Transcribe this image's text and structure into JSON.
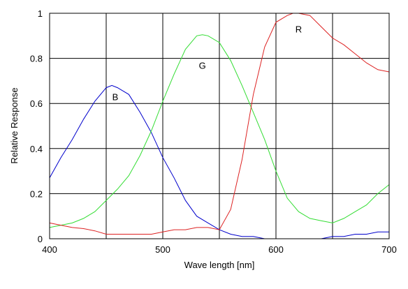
{
  "chart_data": {
    "type": "line",
    "xlabel": "Wave length [nm]",
    "ylabel": "Relative Response",
    "xlim": [
      400,
      700
    ],
    "ylim": [
      0,
      1
    ],
    "xticks": [
      400,
      500,
      600,
      700
    ],
    "yticks": [
      0,
      0.2,
      0.4,
      0.6,
      0.8,
      1
    ],
    "ytick_labels": [
      "0",
      "0.2",
      "0.4",
      "0.6",
      "0.8",
      "1"
    ],
    "grid": true,
    "series": [
      {
        "name": "B",
        "color": "#0000cc",
        "points": [
          [
            400,
            0.27
          ],
          [
            410,
            0.36
          ],
          [
            420,
            0.44
          ],
          [
            430,
            0.53
          ],
          [
            440,
            0.61
          ],
          [
            450,
            0.67
          ],
          [
            455,
            0.68
          ],
          [
            460,
            0.67
          ],
          [
            470,
            0.64
          ],
          [
            480,
            0.56
          ],
          [
            490,
            0.47
          ],
          [
            500,
            0.36
          ],
          [
            510,
            0.27
          ],
          [
            520,
            0.17
          ],
          [
            530,
            0.1
          ],
          [
            540,
            0.07
          ],
          [
            550,
            0.04
          ],
          [
            560,
            0.02
          ],
          [
            570,
            0.01
          ],
          [
            580,
            0.01
          ],
          [
            590,
            0.0
          ],
          [
            600,
            0.0
          ],
          [
            610,
            0.0
          ],
          [
            620,
            0.0
          ],
          [
            630,
            0.0
          ],
          [
            640,
            0.0
          ],
          [
            650,
            0.01
          ],
          [
            660,
            0.01
          ],
          [
            670,
            0.02
          ],
          [
            680,
            0.02
          ],
          [
            690,
            0.03
          ],
          [
            700,
            0.03
          ]
        ]
      },
      {
        "name": "G",
        "color": "#33dd33",
        "points": [
          [
            400,
            0.05
          ],
          [
            410,
            0.06
          ],
          [
            420,
            0.07
          ],
          [
            430,
            0.09
          ],
          [
            440,
            0.12
          ],
          [
            450,
            0.17
          ],
          [
            460,
            0.22
          ],
          [
            470,
            0.28
          ],
          [
            480,
            0.37
          ],
          [
            490,
            0.48
          ],
          [
            500,
            0.61
          ],
          [
            510,
            0.73
          ],
          [
            520,
            0.84
          ],
          [
            530,
            0.9
          ],
          [
            535,
            0.905
          ],
          [
            540,
            0.9
          ],
          [
            550,
            0.87
          ],
          [
            560,
            0.79
          ],
          [
            570,
            0.68
          ],
          [
            580,
            0.56
          ],
          [
            590,
            0.44
          ],
          [
            600,
            0.3
          ],
          [
            610,
            0.18
          ],
          [
            620,
            0.12
          ],
          [
            630,
            0.09
          ],
          [
            640,
            0.08
          ],
          [
            650,
            0.07
          ],
          [
            660,
            0.09
          ],
          [
            670,
            0.12
          ],
          [
            680,
            0.15
          ],
          [
            690,
            0.2
          ],
          [
            700,
            0.24
          ]
        ]
      },
      {
        "name": "R",
        "color": "#dd2222",
        "points": [
          [
            400,
            0.07
          ],
          [
            410,
            0.06
          ],
          [
            420,
            0.05
          ],
          [
            430,
            0.045
          ],
          [
            440,
            0.035
          ],
          [
            450,
            0.02
          ],
          [
            460,
            0.02
          ],
          [
            470,
            0.02
          ],
          [
            480,
            0.02
          ],
          [
            490,
            0.02
          ],
          [
            500,
            0.03
          ],
          [
            510,
            0.04
          ],
          [
            520,
            0.04
          ],
          [
            530,
            0.05
          ],
          [
            540,
            0.05
          ],
          [
            550,
            0.04
          ],
          [
            560,
            0.13
          ],
          [
            570,
            0.35
          ],
          [
            580,
            0.64
          ],
          [
            590,
            0.85
          ],
          [
            600,
            0.96
          ],
          [
            610,
            0.99
          ],
          [
            615,
            1.0
          ],
          [
            620,
            1.0
          ],
          [
            630,
            0.99
          ],
          [
            640,
            0.94
          ],
          [
            650,
            0.89
          ],
          [
            660,
            0.86
          ],
          [
            670,
            0.82
          ],
          [
            680,
            0.78
          ],
          [
            690,
            0.75
          ],
          [
            700,
            0.74
          ]
        ]
      }
    ],
    "labels": [
      {
        "text": "B",
        "x": 458,
        "y": 0.63
      },
      {
        "text": "G",
        "x": 535,
        "y": 0.77
      },
      {
        "text": "R",
        "x": 620,
        "y": 0.93
      }
    ]
  }
}
